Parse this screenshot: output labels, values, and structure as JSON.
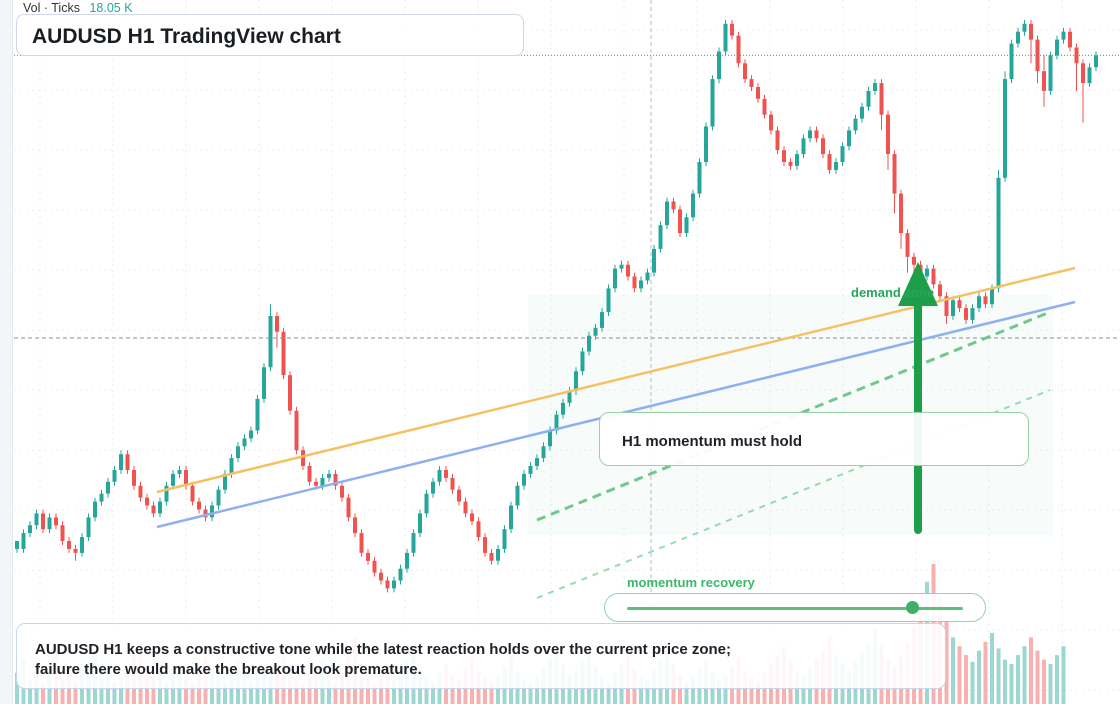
{
  "header": {
    "volume_label": "Vol · Ticks",
    "volume_value": "18.05 K",
    "title": "AUDUSD H1 TradingView chart"
  },
  "annotations": {
    "demand_zone": "demand zone",
    "momentum_card": "H1 momentum must hold",
    "momentum_recovery": "momentum recovery",
    "momentum_recovery_level": 0.85,
    "caption": "AUDUSD H1 keeps a constructive tone while the latest reaction holds over the current price zone; failure there would make the breakout look premature."
  },
  "colors": {
    "up": "#26a69a",
    "down": "#ef5350",
    "trend_orange": "#f5c163",
    "trend_blue": "#8fb0ee",
    "accent_green": "#2ea55a",
    "grid": "#eceef2"
  },
  "chart_data": {
    "type": "candlestick",
    "symbol": "AUDUSD",
    "timeframe": "H1",
    "price_scale_visible": false,
    "ohlc": [
      [
        80,
        82,
        82,
        79
      ],
      [
        80,
        84,
        85,
        79
      ],
      [
        84,
        86,
        87,
        83
      ],
      [
        86,
        89,
        90,
        85
      ],
      [
        89,
        85,
        90,
        84
      ],
      [
        85,
        88,
        89,
        84
      ],
      [
        88,
        86,
        89,
        85
      ],
      [
        86,
        82,
        87,
        81
      ],
      [
        82,
        80,
        83,
        79
      ],
      [
        80,
        79,
        81,
        77
      ],
      [
        79,
        83,
        84,
        78
      ],
      [
        83,
        88,
        89,
        82
      ],
      [
        88,
        92,
        93,
        87
      ],
      [
        92,
        94,
        95,
        91
      ],
      [
        94,
        97,
        98,
        93
      ],
      [
        97,
        100,
        101,
        96
      ],
      [
        100,
        104,
        105,
        99
      ],
      [
        104,
        100,
        105,
        99
      ],
      [
        100,
        96,
        101,
        95
      ],
      [
        96,
        93,
        97,
        92
      ],
      [
        93,
        91,
        94,
        90
      ],
      [
        91,
        89,
        92,
        88
      ],
      [
        89,
        92,
        93,
        88
      ],
      [
        92,
        96,
        97,
        91
      ],
      [
        96,
        99,
        100,
        95
      ],
      [
        99,
        100,
        101,
        98
      ],
      [
        100,
        96,
        101,
        95
      ],
      [
        96,
        92,
        97,
        91
      ],
      [
        92,
        90,
        93,
        89
      ],
      [
        90,
        88,
        91,
        87
      ],
      [
        88,
        91,
        92,
        87
      ],
      [
        91,
        95,
        96,
        90
      ],
      [
        95,
        99,
        100,
        94
      ],
      [
        99,
        103,
        104,
        98
      ],
      [
        103,
        106,
        107,
        102
      ],
      [
        106,
        108,
        109,
        105
      ],
      [
        108,
        110,
        111,
        107
      ],
      [
        110,
        118,
        119,
        109
      ],
      [
        118,
        126,
        127,
        117
      ],
      [
        126,
        139,
        142,
        125
      ],
      [
        139,
        135,
        140,
        131
      ],
      [
        135,
        124,
        136,
        123
      ],
      [
        124,
        115,
        125,
        114
      ],
      [
        115,
        105,
        116,
        104
      ],
      [
        105,
        101,
        106,
        100
      ],
      [
        101,
        97,
        102,
        96
      ],
      [
        97,
        96,
        98,
        95
      ],
      [
        96,
        98,
        99,
        95
      ],
      [
        98,
        99,
        100,
        97
      ],
      [
        99,
        96,
        100,
        95
      ],
      [
        96,
        93,
        97,
        92
      ],
      [
        93,
        88,
        94,
        87
      ],
      [
        88,
        84,
        89,
        83
      ],
      [
        84,
        79,
        85,
        78
      ],
      [
        79,
        77,
        80,
        76
      ],
      [
        77,
        74,
        78,
        73
      ],
      [
        74,
        72,
        75,
        71
      ],
      [
        72,
        70,
        73,
        69
      ],
      [
        70,
        72,
        73,
        69
      ],
      [
        72,
        75,
        76,
        71
      ],
      [
        75,
        79,
        80,
        74
      ],
      [
        79,
        84,
        85,
        78
      ],
      [
        84,
        89,
        90,
        83
      ],
      [
        89,
        94,
        95,
        88
      ],
      [
        94,
        97,
        98,
        93
      ],
      [
        97,
        100,
        101,
        96
      ],
      [
        100,
        98,
        101,
        97
      ],
      [
        98,
        95,
        99,
        94
      ],
      [
        95,
        92,
        96,
        91
      ],
      [
        92,
        89,
        93,
        88
      ],
      [
        89,
        87,
        90,
        86
      ],
      [
        87,
        83,
        88,
        82
      ],
      [
        83,
        79,
        84,
        78
      ],
      [
        79,
        77,
        80,
        76
      ],
      [
        77,
        80,
        81,
        76
      ],
      [
        80,
        85,
        86,
        79
      ],
      [
        85,
        91,
        92,
        84
      ],
      [
        91,
        96,
        97,
        90
      ],
      [
        96,
        99,
        100,
        95
      ],
      [
        99,
        101,
        102,
        98
      ],
      [
        101,
        103,
        104,
        100
      ],
      [
        103,
        106,
        107,
        102
      ],
      [
        106,
        110,
        111,
        105
      ],
      [
        110,
        114,
        115,
        109
      ],
      [
        114,
        117,
        118,
        113
      ],
      [
        117,
        120,
        121,
        116
      ],
      [
        120,
        125,
        126,
        119
      ],
      [
        125,
        130,
        131,
        124
      ],
      [
        130,
        134,
        135,
        129
      ],
      [
        134,
        136,
        137,
        133
      ],
      [
        136,
        140,
        141,
        135
      ],
      [
        140,
        146,
        147,
        139
      ],
      [
        146,
        151,
        152,
        145
      ],
      [
        151,
        152,
        153,
        150
      ],
      [
        152,
        149,
        153,
        148
      ],
      [
        149,
        146,
        150,
        145
      ],
      [
        146,
        148,
        149,
        145
      ],
      [
        148,
        150,
        151,
        147
      ],
      [
        150,
        156,
        157,
        149
      ],
      [
        156,
        162,
        163,
        155
      ],
      [
        162,
        168,
        169,
        161
      ],
      [
        168,
        166,
        169,
        165
      ],
      [
        166,
        160,
        167,
        159
      ],
      [
        160,
        164,
        165,
        159
      ],
      [
        164,
        170,
        171,
        163
      ],
      [
        170,
        178,
        179,
        169
      ],
      [
        178,
        187,
        188,
        177
      ],
      [
        187,
        199,
        200,
        186
      ],
      [
        199,
        206,
        207,
        198
      ],
      [
        206,
        213,
        214,
        205
      ],
      [
        213,
        210,
        214,
        209
      ],
      [
        210,
        203,
        211,
        202
      ],
      [
        203,
        199,
        204,
        198
      ],
      [
        199,
        197,
        200,
        196
      ],
      [
        197,
        194,
        198,
        193
      ],
      [
        194,
        190,
        195,
        189
      ],
      [
        190,
        186,
        191,
        185
      ],
      [
        186,
        181,
        187,
        180
      ],
      [
        181,
        178,
        182,
        177
      ],
      [
        178,
        177,
        179,
        176
      ],
      [
        177,
        180,
        181,
        176
      ],
      [
        180,
        184,
        185,
        179
      ],
      [
        184,
        186,
        187,
        183
      ],
      [
        186,
        184,
        187,
        183
      ],
      [
        184,
        180,
        185,
        179
      ],
      [
        180,
        176,
        181,
        175
      ],
      [
        176,
        178,
        179,
        175
      ],
      [
        178,
        182,
        183,
        177
      ],
      [
        182,
        186,
        187,
        181
      ],
      [
        186,
        189,
        190,
        185
      ],
      [
        189,
        192,
        193,
        188
      ],
      [
        192,
        196,
        197,
        191
      ],
      [
        196,
        198,
        199,
        195
      ],
      [
        198,
        190,
        199,
        186
      ],
      [
        190,
        180,
        191,
        176
      ],
      [
        180,
        170,
        181,
        165
      ],
      [
        170,
        160,
        171,
        156
      ],
      [
        160,
        154,
        161,
        150
      ],
      [
        154,
        152,
        155,
        149
      ],
      [
        152,
        149,
        153,
        147
      ],
      [
        149,
        151,
        152,
        148
      ],
      [
        151,
        147,
        152,
        146
      ],
      [
        147,
        144,
        148,
        143
      ],
      [
        144,
        139,
        145,
        137
      ],
      [
        139,
        143,
        144,
        138
      ],
      [
        143,
        141,
        144,
        140
      ],
      [
        141,
        138,
        142,
        137
      ],
      [
        138,
        141,
        142,
        137
      ],
      [
        141,
        144,
        145,
        140
      ],
      [
        144,
        142,
        145,
        141
      ],
      [
        142,
        146,
        147,
        141
      ],
      [
        146,
        174,
        176,
        145
      ],
      [
        174,
        199,
        201,
        173
      ],
      [
        199,
        208,
        209,
        198
      ],
      [
        208,
        211,
        212,
        207
      ],
      [
        211,
        213,
        214,
        210
      ],
      [
        213,
        209,
        214,
        203
      ],
      [
        209,
        201,
        210,
        198
      ],
      [
        201,
        196,
        205,
        192
      ],
      [
        196,
        205,
        206,
        195
      ],
      [
        205,
        209,
        210,
        204
      ],
      [
        209,
        211,
        212,
        208
      ],
      [
        211,
        207,
        212,
        206
      ],
      [
        207,
        203,
        208,
        196
      ],
      [
        203,
        198,
        204,
        188
      ],
      [
        198,
        202,
        203,
        197
      ],
      [
        202,
        205,
        206,
        201
      ]
    ],
    "volume": [
      14,
      20,
      11,
      17,
      9,
      13,
      25,
      12,
      16,
      10,
      15,
      19,
      24,
      18,
      13,
      10,
      12,
      16,
      22,
      28,
      15,
      12,
      18,
      10,
      13,
      17,
      11,
      9,
      14,
      21,
      16,
      12,
      10,
      15,
      19,
      14,
      10,
      13,
      16,
      12,
      18,
      23,
      14,
      11,
      9,
      12,
      16,
      20,
      13,
      10,
      15,
      22,
      30,
      18,
      12,
      9,
      14,
      17,
      11,
      13,
      19,
      25,
      16,
      12,
      10,
      14,
      18,
      13,
      11,
      16,
      22,
      15,
      12,
      10,
      13,
      17,
      21,
      14,
      11,
      9,
      12,
      16,
      20,
      24,
      18,
      13,
      15,
      19,
      23,
      17,
      12,
      10,
      14,
      18,
      22,
      16,
      12,
      11,
      15,
      20,
      24,
      18,
      13,
      10,
      12,
      16,
      19,
      14,
      11,
      13,
      17,
      21,
      15,
      12,
      10,
      14,
      18,
      22,
      26,
      19,
      14,
      12,
      16,
      20,
      24,
      30,
      22,
      18,
      15,
      19,
      23,
      27,
      34,
      26,
      20,
      17,
      22,
      28,
      35,
      42,
      55,
      63,
      48,
      38,
      30,
      26,
      22,
      19,
      24,
      28,
      32,
      25,
      20,
      18,
      22,
      26,
      30,
      24,
      20,
      18,
      22,
      26
    ]
  }
}
